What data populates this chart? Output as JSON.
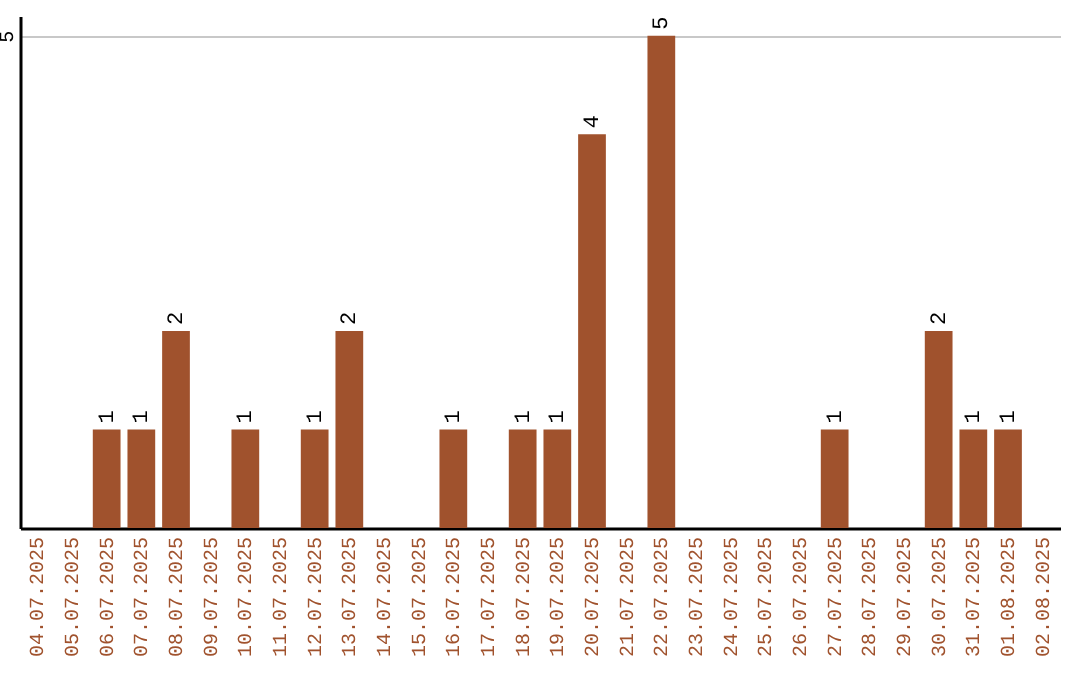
{
  "chart_data": {
    "type": "bar",
    "categories": [
      "04.07.2025",
      "05.07.2025",
      "06.07.2025",
      "07.07.2025",
      "08.07.2025",
      "09.07.2025",
      "10.07.2025",
      "11.07.2025",
      "12.07.2025",
      "13.07.2025",
      "14.07.2025",
      "15.07.2025",
      "16.07.2025",
      "17.07.2025",
      "18.07.2025",
      "19.07.2025",
      "20.07.2025",
      "21.07.2025",
      "22.07.2025",
      "23.07.2025",
      "24.07.2025",
      "25.07.2025",
      "26.07.2025",
      "27.07.2025",
      "28.07.2025",
      "29.07.2025",
      "30.07.2025",
      "31.07.2025",
      "01.08.2025",
      "02.08.2025"
    ],
    "values": [
      0,
      0,
      1,
      1,
      2,
      0,
      1,
      0,
      1,
      2,
      0,
      0,
      1,
      0,
      1,
      1,
      4,
      0,
      5,
      0,
      0,
      0,
      0,
      1,
      0,
      0,
      2,
      1,
      1,
      0
    ],
    "value_labels": [
      null,
      null,
      "1",
      "1",
      "2",
      null,
      "1",
      null,
      "1",
      "2",
      null,
      null,
      "1",
      null,
      "1",
      "1",
      "4",
      null,
      "5",
      null,
      null,
      null,
      null,
      "1",
      null,
      null,
      "2",
      "1",
      "1",
      null
    ],
    "color": "#a0522d",
    "ylim": [
      0,
      5.2
    ],
    "yticks": [
      5
    ],
    "grid": "y"
  }
}
